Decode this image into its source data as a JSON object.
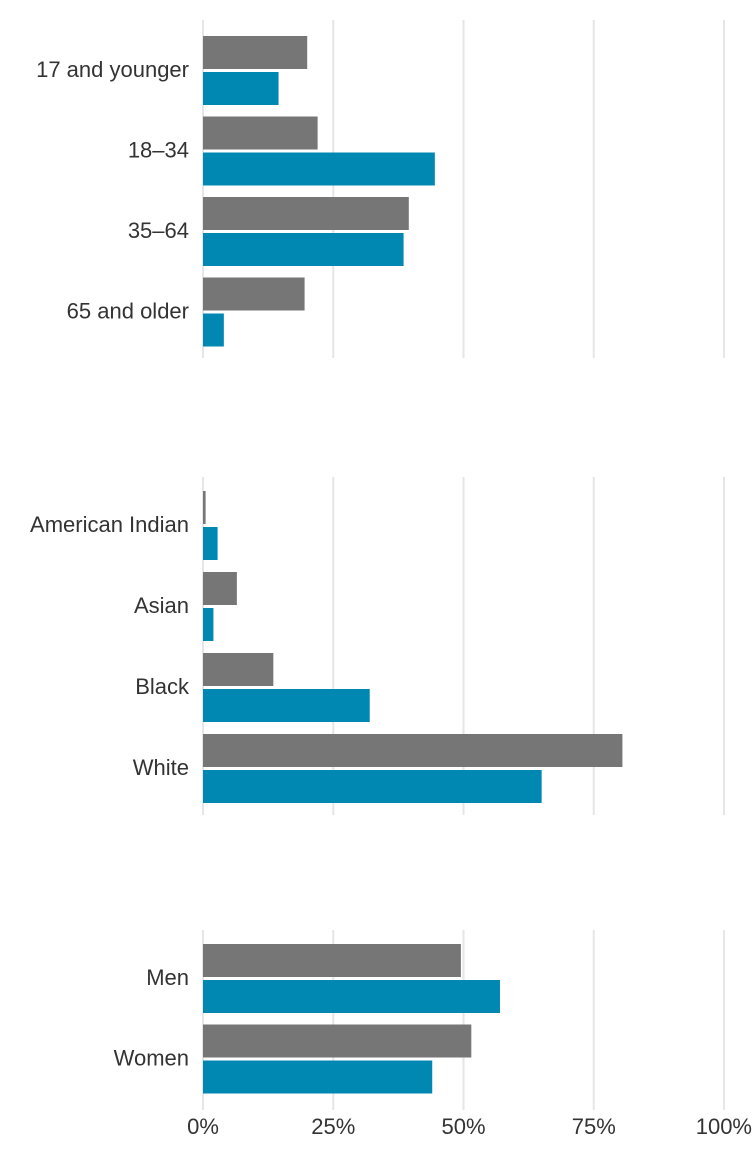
{
  "chart_data": [
    {
      "type": "bar",
      "orientation": "horizontal",
      "categories": [
        "17 and younger",
        "18–34",
        "35–64",
        "65 and older"
      ],
      "series": [
        {
          "values": [
            20,
            22,
            39.5,
            19.5
          ],
          "color": "#767676"
        },
        {
          "values": [
            14.5,
            44.5,
            38.5,
            4
          ],
          "color": "#0088b3"
        }
      ],
      "xlim": [
        0,
        100
      ],
      "grid": true
    },
    {
      "type": "bar",
      "orientation": "horizontal",
      "categories": [
        "American Indian",
        "Asian",
        "Black",
        "White"
      ],
      "series": [
        {
          "values": [
            0.5,
            6.5,
            13.5,
            80.5
          ],
          "color": "#767676"
        },
        {
          "values": [
            2.8,
            2,
            32,
            65
          ],
          "color": "#0088b3"
        }
      ],
      "xlim": [
        0,
        100
      ],
      "grid": true
    },
    {
      "type": "bar",
      "orientation": "horizontal",
      "categories": [
        "Men",
        "Women"
      ],
      "series": [
        {
          "values": [
            49.5,
            51.5
          ],
          "color": "#767676"
        },
        {
          "values": [
            57,
            44
          ],
          "color": "#0088b3"
        }
      ],
      "xlim": [
        0,
        100
      ],
      "xticks": [
        "0%",
        "25%",
        "50%",
        "75%",
        "100%"
      ],
      "grid": true
    }
  ]
}
